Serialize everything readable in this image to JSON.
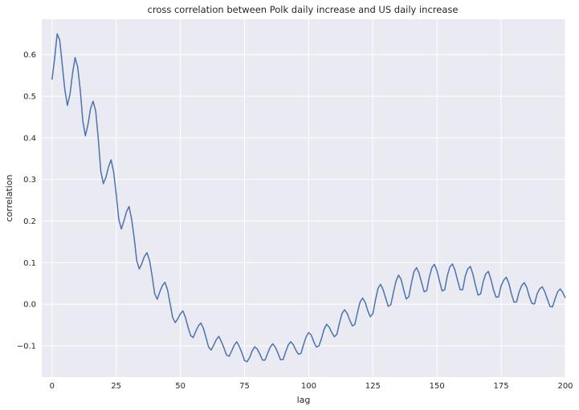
{
  "chart_data": {
    "type": "line",
    "title": "cross correlation between Polk daily increase and US daily increase",
    "xlabel": "lag",
    "ylabel": "correlation",
    "xlim": [
      -4,
      200
    ],
    "ylim": [
      -0.175,
      0.685
    ],
    "xticks": [
      0,
      25,
      50,
      75,
      100,
      125,
      150,
      175,
      200
    ],
    "xtick_labels": [
      "0",
      "25",
      "50",
      "75",
      "100",
      "125",
      "150",
      "175",
      "200"
    ],
    "yticks": [
      -0.1,
      0.0,
      0.1,
      0.2,
      0.3,
      0.4,
      0.5,
      0.6
    ],
    "ytick_labels": [
      "−0.1",
      "0.0",
      "0.1",
      "0.2",
      "0.3",
      "0.4",
      "0.5",
      "0.6"
    ],
    "grid": true,
    "background_color": "#eaeaf2",
    "line_color": "#4c72b0",
    "series": [
      {
        "x": [
          0,
          1,
          2,
          3,
          4,
          5,
          6,
          7,
          8,
          9,
          10,
          11,
          12,
          13,
          14,
          15,
          16,
          17,
          18,
          19,
          20,
          21,
          22,
          23,
          24,
          25,
          26,
          27,
          28,
          29,
          30,
          31,
          32,
          33,
          34,
          35,
          36,
          37,
          38,
          39,
          40,
          41,
          42,
          43,
          44,
          45,
          46,
          47,
          48,
          49,
          50,
          51,
          52,
          53,
          54,
          55,
          56,
          57,
          58,
          59,
          60,
          61,
          62,
          63,
          64,
          65,
          66,
          67,
          68,
          69,
          70,
          71,
          72,
          73,
          74,
          75,
          76,
          77,
          78,
          79,
          80,
          81,
          82,
          83,
          84,
          85,
          86,
          87,
          88,
          89,
          90,
          91,
          92,
          93,
          94,
          95,
          96,
          97,
          98,
          99,
          100,
          101,
          102,
          103,
          104,
          105,
          106,
          107,
          108,
          109,
          110,
          111,
          112,
          113,
          114,
          115,
          116,
          117,
          118,
          119,
          120,
          121,
          122,
          123,
          124,
          125,
          126,
          127,
          128,
          129,
          130,
          131,
          132,
          133,
          134,
          135,
          136,
          137,
          138,
          139,
          140,
          141,
          142,
          143,
          144,
          145,
          146,
          147,
          148,
          149,
          150,
          151,
          152,
          153,
          154,
          155,
          156,
          157,
          158,
          159,
          160,
          161,
          162,
          163,
          164,
          165,
          166,
          167,
          168,
          169,
          170,
          171,
          172,
          173,
          174,
          175,
          176,
          177,
          178,
          179,
          180,
          181,
          182,
          183,
          184,
          185,
          186,
          187,
          188,
          189,
          190,
          191,
          192,
          193,
          194,
          195,
          196,
          197,
          198,
          199,
          200
        ],
        "y": [
          0.54,
          0.59,
          0.65,
          0.635,
          0.575,
          0.515,
          0.478,
          0.505,
          0.555,
          0.593,
          0.57,
          0.515,
          0.44,
          0.405,
          0.432,
          0.47,
          0.488,
          0.465,
          0.4,
          0.32,
          0.29,
          0.305,
          0.33,
          0.347,
          0.318,
          0.265,
          0.205,
          0.181,
          0.2,
          0.222,
          0.235,
          0.205,
          0.16,
          0.105,
          0.085,
          0.098,
          0.115,
          0.124,
          0.105,
          0.068,
          0.025,
          0.012,
          0.03,
          0.045,
          0.053,
          0.035,
          0.002,
          -0.032,
          -0.044,
          -0.035,
          -0.023,
          -0.016,
          -0.032,
          -0.055,
          -0.075,
          -0.08,
          -0.065,
          -0.052,
          -0.045,
          -0.058,
          -0.08,
          -0.103,
          -0.11,
          -0.098,
          -0.085,
          -0.077,
          -0.09,
          -0.105,
          -0.122,
          -0.125,
          -0.112,
          -0.098,
          -0.09,
          -0.102,
          -0.117,
          -0.135,
          -0.138,
          -0.128,
          -0.112,
          -0.102,
          -0.108,
          -0.12,
          -0.134,
          -0.134,
          -0.118,
          -0.103,
          -0.095,
          -0.103,
          -0.117,
          -0.133,
          -0.133,
          -0.115,
          -0.098,
          -0.09,
          -0.097,
          -0.11,
          -0.12,
          -0.118,
          -0.097,
          -0.078,
          -0.068,
          -0.074,
          -0.09,
          -0.103,
          -0.1,
          -0.082,
          -0.06,
          -0.048,
          -0.055,
          -0.068,
          -0.078,
          -0.072,
          -0.045,
          -0.022,
          -0.013,
          -0.022,
          -0.038,
          -0.052,
          -0.048,
          -0.02,
          0.005,
          0.015,
          0.005,
          -0.015,
          -0.03,
          -0.023,
          0.01,
          0.038,
          0.048,
          0.035,
          0.015,
          -0.005,
          -0.001,
          0.028,
          0.055,
          0.07,
          0.06,
          0.035,
          0.013,
          0.018,
          0.05,
          0.078,
          0.088,
          0.075,
          0.052,
          0.03,
          0.033,
          0.065,
          0.088,
          0.096,
          0.08,
          0.055,
          0.032,
          0.035,
          0.068,
          0.09,
          0.097,
          0.082,
          0.058,
          0.035,
          0.035,
          0.068,
          0.085,
          0.091,
          0.072,
          0.045,
          0.022,
          0.025,
          0.055,
          0.073,
          0.079,
          0.06,
          0.035,
          0.017,
          0.018,
          0.045,
          0.058,
          0.065,
          0.05,
          0.025,
          0.005,
          0.006,
          0.03,
          0.045,
          0.052,
          0.04,
          0.018,
          0.002,
          0.001,
          0.025,
          0.037,
          0.042,
          0.03,
          0.012,
          -0.005,
          -0.006,
          0.013,
          0.03,
          0.037,
          0.028,
          0.015
        ]
      }
    ]
  }
}
